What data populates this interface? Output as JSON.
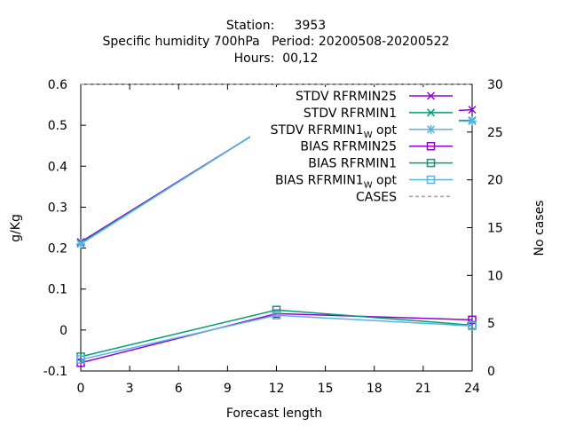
{
  "chart_data": {
    "type": "line",
    "title_lines": [
      "Station:     3953",
      "Specific humidity 700hPa   Period: 20200508-20200522",
      "Hours:  00,12"
    ],
    "xlabel": "Forecast length",
    "ylabel": "g/Kg",
    "y2label": "No cases",
    "xlim": [
      0,
      24
    ],
    "ylim": [
      -0.1,
      0.6
    ],
    "y2lim": [
      0,
      30
    ],
    "xticks": [
      "0",
      "3",
      "6",
      "9",
      "12",
      "15",
      "18",
      "21",
      "24"
    ],
    "yticks": [
      "-0.1",
      "0",
      "0.1",
      "0.2",
      "0.3",
      "0.4",
      "0.5",
      "0.6"
    ],
    "y2ticks": [
      "0",
      "5",
      "10",
      "15",
      "20",
      "25",
      "30"
    ],
    "legend_position": "top-right",
    "grid": false,
    "x": [
      0,
      12,
      24
    ],
    "series": [
      {
        "name": "STDV RFRMIN25",
        "values": [
          0.215,
          0.512,
          0.538
        ],
        "color": "#9400d3",
        "marker": "x"
      },
      {
        "name": "STDV RFRMIN1",
        "values": [
          0.212,
          0.512,
          0.512
        ],
        "color": "#009e73",
        "marker": "x"
      },
      {
        "name": "STDV RFRMIN1",
        "subscript": "W",
        "suffix": " opt",
        "values": [
          0.21,
          0.513,
          0.51
        ],
        "color": "#56b4e9",
        "marker": "star"
      },
      {
        "name": "BIAS RFRMIN25",
        "values": [
          -0.08,
          0.04,
          0.025
        ],
        "color": "#9400d3",
        "marker": "square"
      },
      {
        "name": "BIAS RFRMIN1",
        "values": [
          -0.065,
          0.049,
          0.012
        ],
        "color": "#009e73",
        "marker": "square"
      },
      {
        "name": "BIAS RFRMIN1",
        "subscript": "W",
        "suffix": " opt",
        "values": [
          -0.072,
          0.036,
          0.01
        ],
        "color": "#56b4e9",
        "marker": "square"
      },
      {
        "name": "CASES",
        "values": [
          30,
          30,
          30
        ],
        "axis": "y2",
        "color": "#a0a0a0",
        "dash": true
      }
    ]
  }
}
